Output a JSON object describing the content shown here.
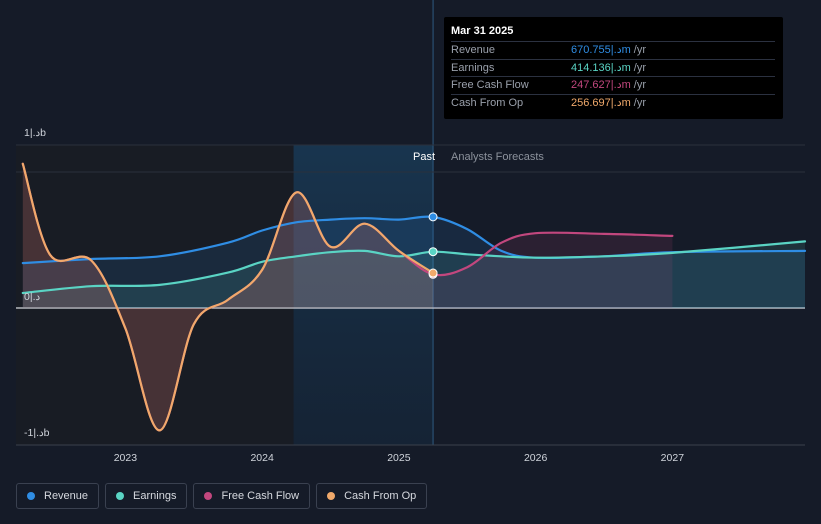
{
  "chart_data": {
    "type": "area",
    "y_labels": {
      "top": "1|.دb",
      "zero": "0|.د",
      "bottom": "-1|.دb"
    },
    "ylim": [
      -1000,
      1000
    ],
    "xlim": [
      2022.2,
      2027.97
    ],
    "x_ticks": [
      {
        "value": 2023,
        "label": "2023"
      },
      {
        "value": 2024,
        "label": "2024"
      },
      {
        "value": 2025,
        "label": "2025"
      },
      {
        "value": 2026,
        "label": "2026"
      },
      {
        "value": 2027,
        "label": "2027"
      }
    ],
    "regions": {
      "past_label": "Past",
      "forecast_label": "Analysts Forecasts",
      "past_shade_start": 2024.23,
      "divider": 2025.25
    },
    "grid": true,
    "series": [
      {
        "name": "Revenue",
        "color": "#2f8de4",
        "values": [
          [
            2022.25,
            330
          ],
          [
            2022.75,
            360
          ],
          [
            2023.25,
            380
          ],
          [
            2023.75,
            480
          ],
          [
            2024.0,
            570
          ],
          [
            2024.25,
            630
          ],
          [
            2024.5,
            650
          ],
          [
            2024.75,
            660
          ],
          [
            2025.0,
            650
          ],
          [
            2025.25,
            670
          ],
          [
            2025.5,
            580
          ],
          [
            2025.75,
            420
          ],
          [
            2026.0,
            370
          ],
          [
            2026.5,
            380
          ],
          [
            2027.0,
            410
          ],
          [
            2027.97,
            420
          ]
        ]
      },
      {
        "name": "Earnings",
        "color": "#5ad4c4",
        "values": [
          [
            2022.25,
            110
          ],
          [
            2022.75,
            160
          ],
          [
            2023.25,
            170
          ],
          [
            2023.75,
            260
          ],
          [
            2024.0,
            340
          ],
          [
            2024.25,
            380
          ],
          [
            2024.5,
            410
          ],
          [
            2024.75,
            420
          ],
          [
            2025.0,
            380
          ],
          [
            2025.25,
            414
          ],
          [
            2025.5,
            395
          ],
          [
            2025.75,
            380
          ],
          [
            2026.0,
            370
          ],
          [
            2026.5,
            380
          ],
          [
            2027.0,
            405
          ],
          [
            2027.97,
            490
          ]
        ]
      },
      {
        "name": "Free Cash Flow",
        "color": "#c2477e",
        "values": [
          [
            2022.25,
            1060
          ],
          [
            2022.45,
            390
          ],
          [
            2022.75,
            350
          ],
          [
            2023.0,
            -150
          ],
          [
            2023.25,
            -900
          ],
          [
            2023.5,
            -120
          ],
          [
            2023.75,
            60
          ],
          [
            2024.0,
            280
          ],
          [
            2024.25,
            850
          ],
          [
            2024.5,
            450
          ],
          [
            2024.75,
            620
          ],
          [
            2025.0,
            420
          ],
          [
            2025.25,
            248
          ],
          [
            2025.5,
            300
          ],
          [
            2025.75,
            480
          ],
          [
            2026.0,
            550
          ],
          [
            2026.5,
            545
          ],
          [
            2027.0,
            530
          ]
        ]
      },
      {
        "name": "Cash From Op",
        "color": "#f0a96b",
        "values": [
          [
            2022.25,
            1060
          ],
          [
            2022.45,
            390
          ],
          [
            2022.75,
            350
          ],
          [
            2023.0,
            -150
          ],
          [
            2023.25,
            -900
          ],
          [
            2023.5,
            -120
          ],
          [
            2023.75,
            60
          ],
          [
            2024.0,
            280
          ],
          [
            2024.25,
            850
          ],
          [
            2024.5,
            450
          ],
          [
            2024.75,
            620
          ],
          [
            2025.0,
            420
          ],
          [
            2025.25,
            257
          ]
        ]
      }
    ]
  },
  "tooltip": {
    "date": "Mar 31 2025",
    "rows": [
      {
        "label": "Revenue",
        "value": "670.755|.دm",
        "unit": "/yr",
        "color": "#2f8de4"
      },
      {
        "label": "Earnings",
        "value": "414.136|.دm",
        "unit": "/yr",
        "color": "#5ad4c4"
      },
      {
        "label": "Free Cash Flow",
        "value": "247.627|.دm",
        "unit": "/yr",
        "color": "#c2477e"
      },
      {
        "label": "Cash From Op",
        "value": "256.697|.دm",
        "unit": "/yr",
        "color": "#f0a96b"
      }
    ]
  },
  "legend": [
    {
      "label": "Revenue",
      "color": "#2f8de4"
    },
    {
      "label": "Earnings",
      "color": "#5ad4c4"
    },
    {
      "label": "Free Cash Flow",
      "color": "#c2477e"
    },
    {
      "label": "Cash From Op",
      "color": "#f0a96b"
    }
  ]
}
